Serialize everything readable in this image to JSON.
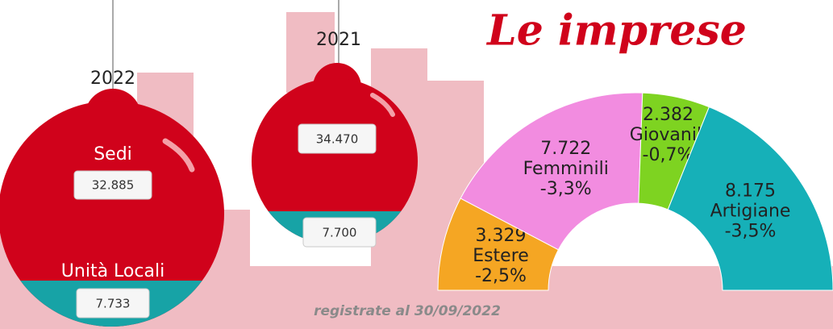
{
  "title": "Le imprese",
  "footnote": "registrate al 30/09/2022",
  "ornaments": [
    {
      "year": "2022",
      "top_label": "Sedi",
      "top_value": "32.885",
      "bottom_label": "Unità Locali",
      "bottom_value": "7.733"
    },
    {
      "year": "2021",
      "top_value": "34.470",
      "bottom_value": "7.700"
    }
  ],
  "chart_data": {
    "type": "semi-donut",
    "categories": [
      "Estere",
      "Femminili",
      "Giovanili",
      "Artigiane"
    ],
    "values": [
      3329,
      7722,
      2382,
      8175
    ],
    "value_labels": [
      "3.329",
      "7.722",
      "2.382",
      "8.175"
    ],
    "change_labels": [
      "-2,5%",
      "-3,3%",
      "-0,7%",
      "-3,5%"
    ],
    "colors": [
      "#f5a623",
      "#f28ce0",
      "#7ed321",
      "#16b0b8"
    ]
  }
}
